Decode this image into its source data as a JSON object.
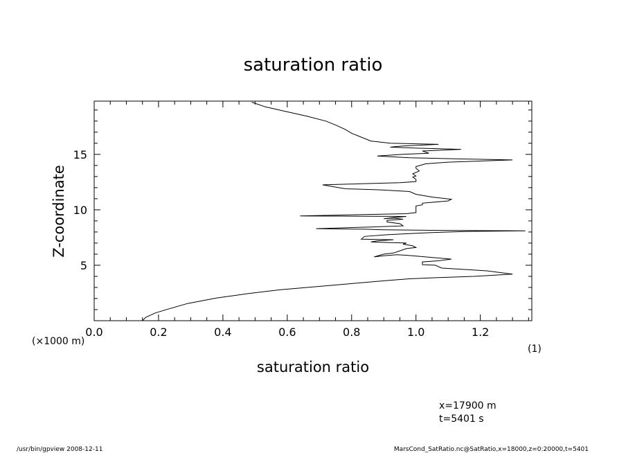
{
  "chart_data": {
    "type": "line",
    "title": "saturation ratio",
    "xlabel": "saturation ratio",
    "ylabel": "Z-coordinate",
    "x_unit": "(1)",
    "y_unit": "(×1000 m)",
    "xlim": [
      0.0,
      1.36
    ],
    "ylim": [
      0.0,
      19.8
    ],
    "x_ticks": [
      "0.0",
      "0.2",
      "0.4",
      "0.6",
      "0.8",
      "1.0",
      "1.2"
    ],
    "y_ticks": [
      "5",
      "10",
      "15"
    ],
    "series": [
      {
        "points": [
          [
            0.15,
            0.0
          ],
          [
            0.16,
            0.3
          ],
          [
            0.19,
            0.7
          ],
          [
            0.23,
            1.05
          ],
          [
            0.29,
            1.55
          ],
          [
            0.38,
            2.05
          ],
          [
            0.48,
            2.45
          ],
          [
            0.58,
            2.8
          ],
          [
            0.68,
            3.05
          ],
          [
            0.78,
            3.3
          ],
          [
            0.86,
            3.5
          ],
          [
            0.92,
            3.65
          ],
          [
            0.98,
            3.78
          ],
          [
            1.08,
            3.9
          ],
          [
            1.18,
            4.0
          ],
          [
            1.3,
            4.2
          ],
          [
            1.22,
            4.5
          ],
          [
            1.08,
            4.75
          ],
          [
            1.06,
            5.0
          ],
          [
            1.02,
            5.05
          ],
          [
            1.02,
            5.3
          ],
          [
            1.07,
            5.4
          ],
          [
            1.11,
            5.55
          ],
          [
            1.03,
            5.75
          ],
          [
            0.97,
            5.9
          ],
          [
            0.94,
            5.95
          ],
          [
            0.9,
            5.85
          ],
          [
            0.87,
            5.75
          ],
          [
            0.9,
            6.0
          ],
          [
            0.93,
            6.1
          ],
          [
            0.95,
            6.3
          ],
          [
            0.97,
            6.5
          ],
          [
            1.0,
            6.6
          ],
          [
            0.99,
            6.75
          ],
          [
            0.96,
            6.9
          ],
          [
            0.97,
            7.0
          ],
          [
            0.91,
            7.05
          ],
          [
            0.86,
            7.1
          ],
          [
            0.88,
            7.2
          ],
          [
            0.93,
            7.3
          ],
          [
            0.83,
            7.35
          ],
          [
            0.84,
            7.6
          ],
          [
            0.91,
            7.75
          ],
          [
            0.98,
            7.85
          ],
          [
            1.05,
            7.95
          ],
          [
            1.16,
            8.05
          ],
          [
            1.34,
            8.1
          ],
          [
            1.05,
            8.15
          ],
          [
            0.9,
            8.2
          ],
          [
            0.84,
            8.25
          ],
          [
            0.69,
            8.3
          ],
          [
            0.86,
            8.45
          ],
          [
            0.96,
            8.55
          ],
          [
            0.95,
            8.75
          ],
          [
            0.91,
            8.9
          ],
          [
            0.91,
            9.05
          ],
          [
            0.96,
            9.15
          ],
          [
            0.93,
            9.25
          ],
          [
            0.9,
            9.2
          ],
          [
            0.93,
            9.3
          ],
          [
            0.97,
            9.4
          ],
          [
            0.64,
            9.45
          ],
          [
            0.8,
            9.55
          ],
          [
            0.97,
            9.65
          ],
          [
            1.0,
            9.75
          ],
          [
            1.0,
            9.9
          ],
          [
            1.0,
            10.1
          ],
          [
            1.0,
            10.35
          ],
          [
            1.02,
            10.45
          ],
          [
            1.02,
            10.6
          ],
          [
            1.1,
            10.8
          ],
          [
            1.11,
            10.95
          ],
          [
            1.05,
            11.15
          ],
          [
            1.0,
            11.4
          ],
          [
            0.98,
            11.65
          ],
          [
            0.89,
            11.8
          ],
          [
            0.78,
            11.9
          ],
          [
            0.71,
            12.25
          ],
          [
            0.83,
            12.35
          ],
          [
            0.95,
            12.45
          ],
          [
            1.0,
            12.55
          ],
          [
            1.0,
            12.75
          ],
          [
            0.99,
            12.95
          ],
          [
            1.0,
            13.05
          ],
          [
            0.99,
            13.25
          ],
          [
            1.01,
            13.5
          ],
          [
            1.0,
            13.75
          ],
          [
            1.0,
            13.9
          ],
          [
            1.03,
            14.15
          ],
          [
            1.1,
            14.3
          ],
          [
            1.2,
            14.4
          ],
          [
            1.3,
            14.5
          ],
          [
            1.12,
            14.6
          ],
          [
            0.98,
            14.7
          ],
          [
            0.88,
            14.85
          ],
          [
            0.96,
            15.0
          ],
          [
            1.04,
            15.1
          ],
          [
            1.02,
            15.3
          ],
          [
            1.14,
            15.45
          ],
          [
            1.01,
            15.55
          ],
          [
            0.92,
            15.65
          ],
          [
            0.96,
            15.75
          ],
          [
            1.07,
            15.9
          ],
          [
            0.92,
            16.0
          ],
          [
            0.86,
            16.2
          ],
          [
            0.83,
            16.55
          ],
          [
            0.8,
            16.9
          ],
          [
            0.78,
            17.25
          ],
          [
            0.75,
            17.65
          ],
          [
            0.72,
            18.0
          ],
          [
            0.66,
            18.45
          ],
          [
            0.59,
            18.9
          ],
          [
            0.53,
            19.3
          ],
          [
            0.49,
            19.7
          ]
        ]
      }
    ],
    "grid": false,
    "legend": "none"
  },
  "annotations": {
    "x_position": "x=17900  m",
    "t_position": "t=5401  s"
  },
  "footer": {
    "left": "/usr/bin/gpview   2008-12-11",
    "right": "MarsCond_SatRatio.nc@SatRatio,x=18000,z=0:20000,t=5401"
  }
}
